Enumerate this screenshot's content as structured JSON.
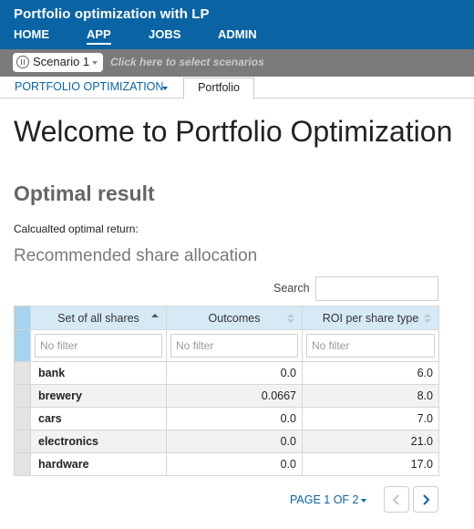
{
  "app": {
    "title": "Portfolio optimization with LP"
  },
  "nav": {
    "items": [
      {
        "label": "HOME"
      },
      {
        "label": "APP"
      },
      {
        "label": "JOBS"
      },
      {
        "label": "ADMIN"
      }
    ],
    "active": "APP"
  },
  "scenario": {
    "selected": "Scenario 1",
    "hint": "Click here to select scenarios"
  },
  "tabs": {
    "dropdown_label": "PORTFOLIO OPTIMIZATION",
    "active_tab": "Portfolio"
  },
  "page": {
    "welcome": "Welcome to Portfolio Optimization",
    "section_title": "Optimal result",
    "return_label": "Calcualted optimal return:",
    "allocation_title": "Recommended share allocation"
  },
  "search": {
    "label": "Search",
    "value": ""
  },
  "table": {
    "columns": [
      {
        "label": "Set of all shares",
        "sort": "asc"
      },
      {
        "label": "Outcomes",
        "sort": "none"
      },
      {
        "label": "ROI per share type",
        "sort": "none"
      }
    ],
    "filter_placeholder": "No filter",
    "rows": [
      {
        "share": "bank",
        "outcome": "0.0",
        "roi": "6.0"
      },
      {
        "share": "brewery",
        "outcome": "0.0667",
        "roi": "8.0"
      },
      {
        "share": "cars",
        "outcome": "0.0",
        "roi": "7.0"
      },
      {
        "share": "electronics",
        "outcome": "0.0",
        "roi": "21.0"
      },
      {
        "share": "hardware",
        "outcome": "0.0",
        "roi": "17.0"
      }
    ]
  },
  "pager": {
    "label": "PAGE 1 OF 2"
  },
  "colors": {
    "header_blue": "#0a64a3",
    "scenario_bar": "#7b7b7b",
    "grid_header": "#d6eaf6",
    "link": "#0a64a3"
  }
}
